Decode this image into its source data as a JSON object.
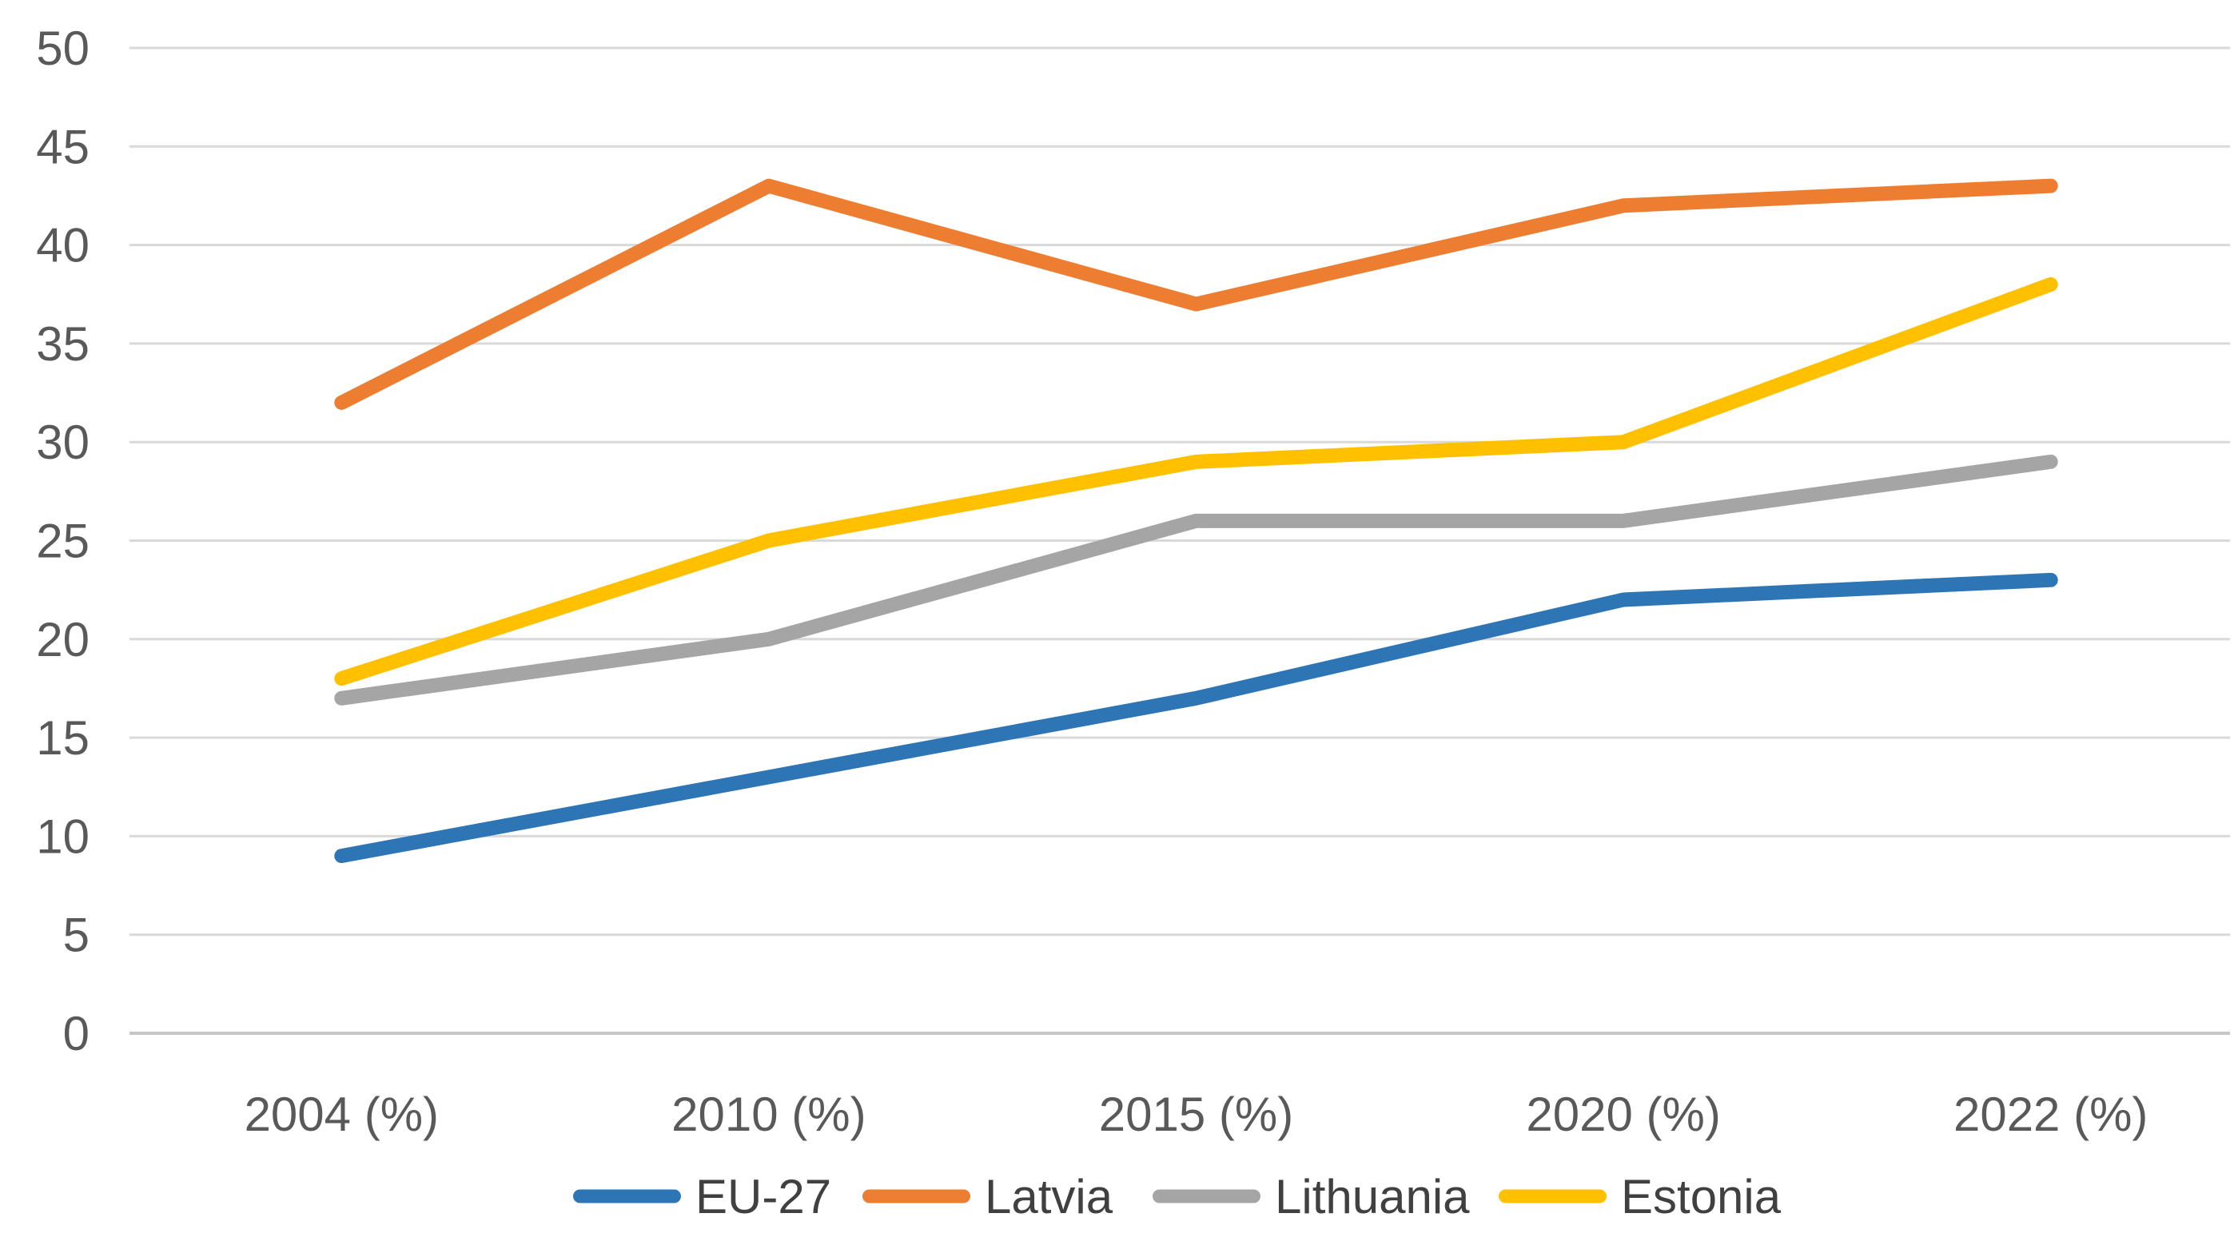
{
  "chart_data": {
    "type": "line",
    "title": "",
    "xlabel": "",
    "ylabel": "",
    "categories": [
      "2004 (%)",
      "2010 (%)",
      "2015 (%)",
      "2020 (%)",
      "2022 (%)"
    ],
    "series": [
      {
        "name": "EU-27",
        "color": "#2E75B6",
        "values": [
          9,
          13,
          17,
          22,
          23
        ]
      },
      {
        "name": "Latvia",
        "color": "#ED7D31",
        "values": [
          32,
          43,
          37,
          42,
          43
        ]
      },
      {
        "name": "Lithuania",
        "color": "#A5A5A5",
        "values": [
          17,
          20,
          26,
          26,
          29
        ]
      },
      {
        "name": "Estonia",
        "color": "#FFC000",
        "values": [
          18,
          25,
          29,
          30,
          38
        ]
      }
    ],
    "ylim": [
      0,
      50
    ],
    "ytick_step": 5,
    "ytick_labels": [
      "0",
      "5",
      "10",
      "15",
      "20",
      "25",
      "30",
      "35",
      "40",
      "45",
      "50"
    ],
    "grid": true,
    "legend_position": "bottom",
    "legend_entries": [
      "EU-27",
      "Latvia",
      "Lithuania",
      "Estonia"
    ]
  },
  "style_colors": {
    "gridline": "#D9D9D9",
    "zero_line": "#C6C6C6",
    "axis_text": "#595959",
    "background": "#FFFFFF"
  }
}
